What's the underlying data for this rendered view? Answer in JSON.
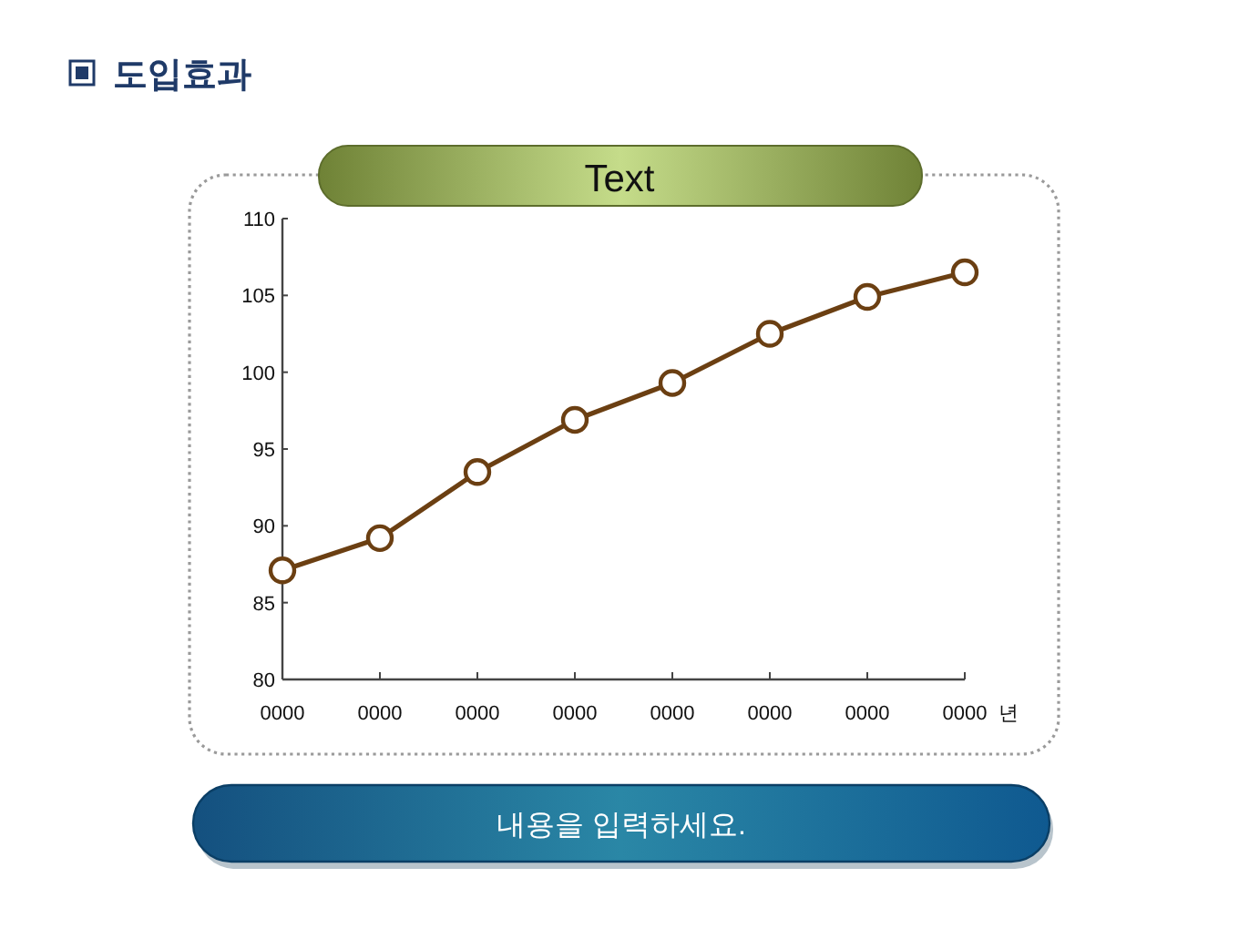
{
  "chart_data": {
    "type": "line",
    "title": "도입효과",
    "subtitle": "Text",
    "xlabel": "년",
    "annotations": [
      "내용을 입력하세요."
    ],
    "categories": [
      "0000",
      "0000",
      "0000",
      "0000",
      "0000",
      "0000",
      "0000",
      "0000"
    ],
    "series": [
      {
        "color": "#6b3f12",
        "values": [
          87.1,
          89.2,
          93.5,
          96.9,
          99.3,
          102.5,
          104.9,
          106.5
        ]
      }
    ],
    "ylim": [
      80,
      110
    ],
    "yticks": [
      80,
      85,
      90,
      95,
      100,
      105,
      110
    ],
    "marker": "circle",
    "line_style": "solid"
  }
}
